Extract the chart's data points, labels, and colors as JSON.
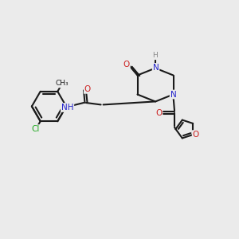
{
  "bg_color": "#ebebeb",
  "bond_color": "#1a1a1a",
  "colors": {
    "N": "#2222cc",
    "O": "#cc2222",
    "Cl": "#22aa22",
    "H": "#888888",
    "C": "#1a1a1a"
  },
  "figsize": [
    3.0,
    3.0
  ],
  "dpi": 100
}
